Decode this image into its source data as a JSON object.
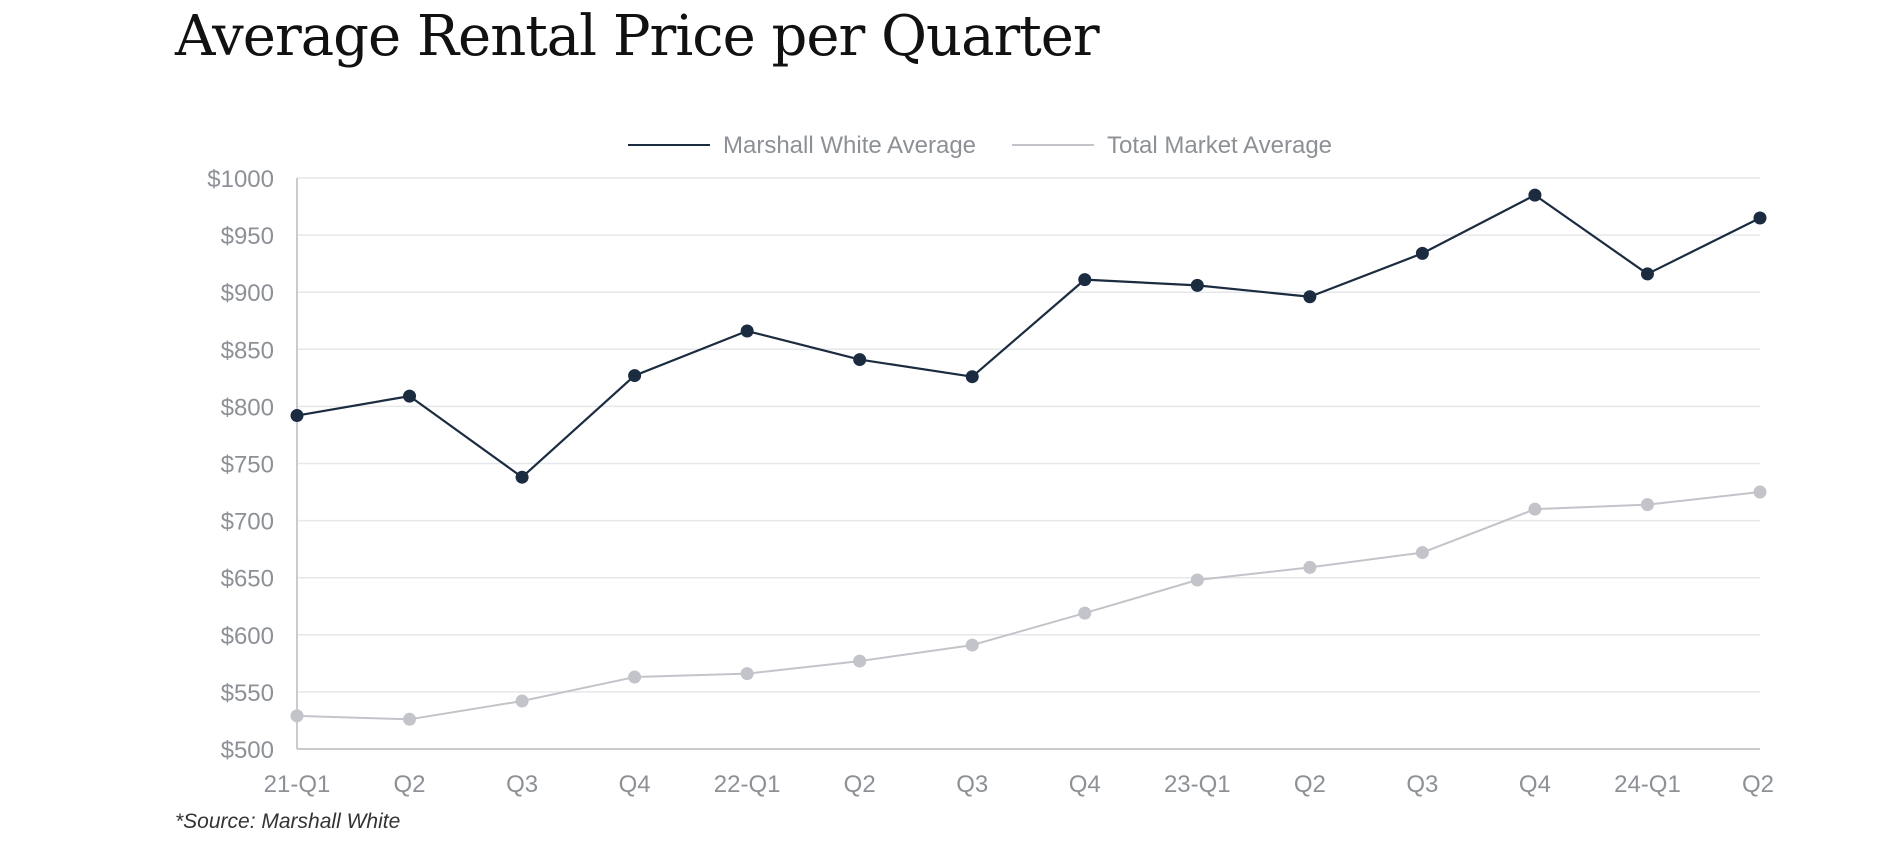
{
  "chart_data": {
    "type": "line",
    "title": "Average Rental Price per Quarter",
    "source": "*Source: Marshall White",
    "categories": [
      "21-Q1",
      "Q2",
      "Q3",
      "Q4",
      "22-Q1",
      "Q2",
      "Q3",
      "Q4",
      "23-Q1",
      "Q2",
      "Q3",
      "Q4",
      "24-Q1",
      "Q2"
    ],
    "y_ticks": [
      "$500",
      "$550",
      "$600",
      "$650",
      "$700",
      "$750",
      "$800",
      "$850",
      "$900",
      "$950",
      "$1000"
    ],
    "ylim": [
      500,
      1000
    ],
    "xlabel": "",
    "ylabel": "",
    "grid": true,
    "legend_position": "top-center",
    "series": [
      {
        "name": "Marshall White Average",
        "color": "#1b2b40",
        "values": [
          792,
          809,
          738,
          827,
          866,
          841,
          826,
          911,
          906,
          896,
          934,
          985,
          916,
          965
        ]
      },
      {
        "name": "Total Market Average",
        "color": "#c3c4ca",
        "values": [
          529,
          526,
          542,
          563,
          566,
          577,
          591,
          619,
          648,
          659,
          672,
          710,
          714,
          725
        ]
      }
    ]
  }
}
